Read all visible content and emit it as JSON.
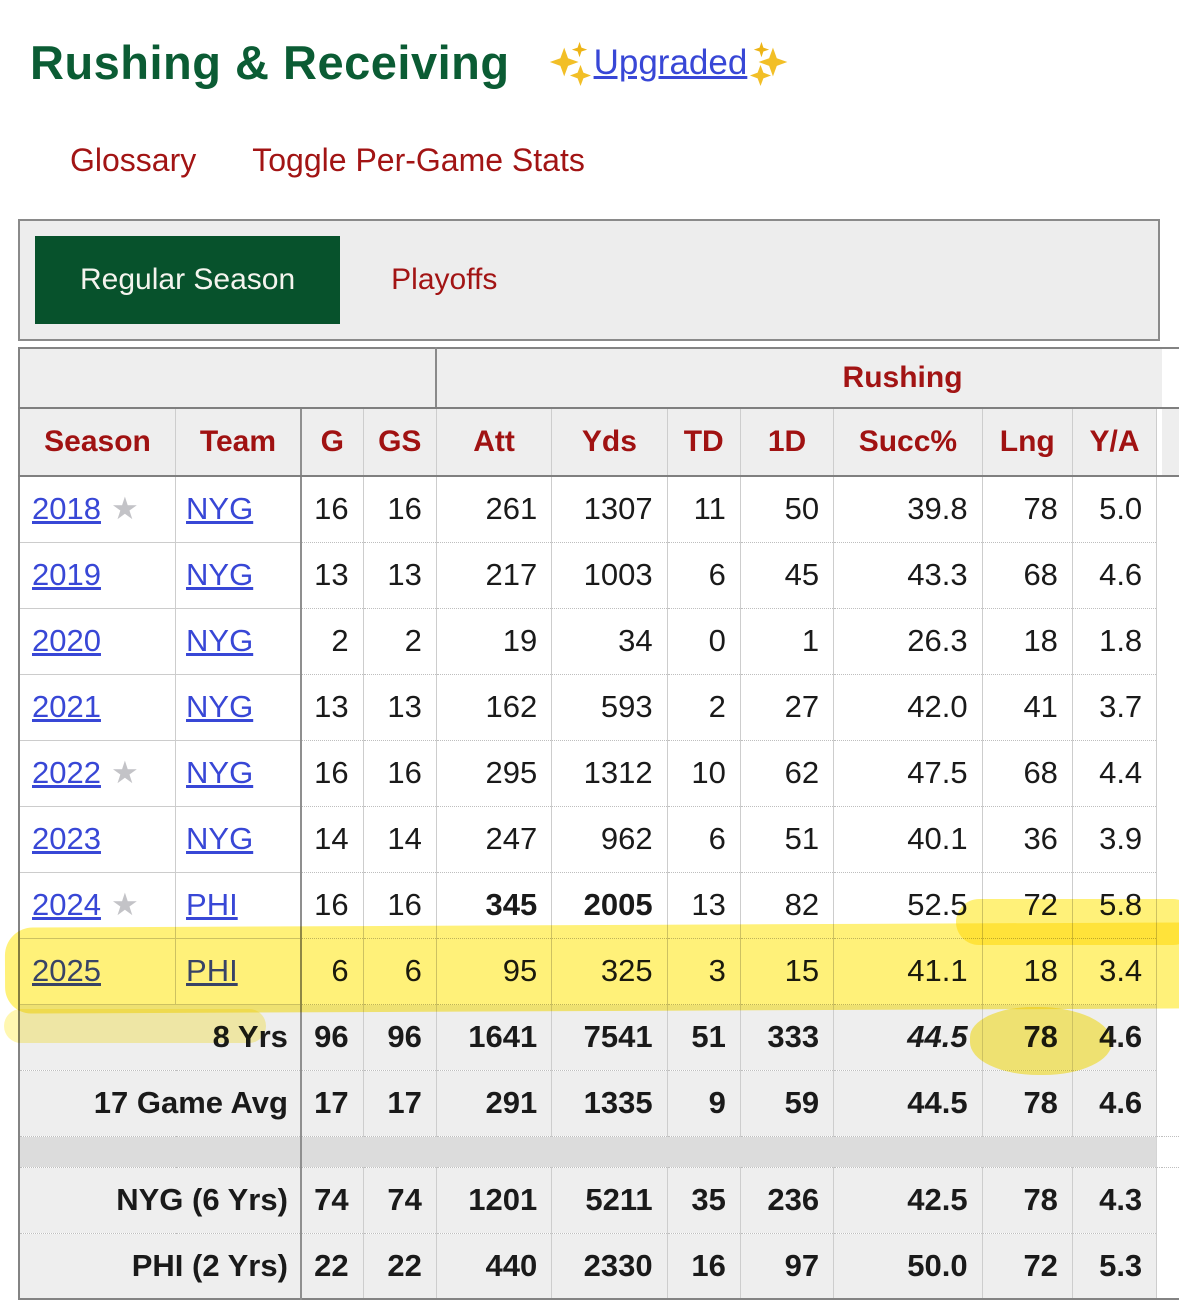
{
  "header": {
    "title": "Rushing & Receiving",
    "upgraded": "Upgraded",
    "glossary": "Glossary",
    "toggle": "Toggle Per-Game Stats"
  },
  "tabs": [
    {
      "label": "Regular Season",
      "active": true
    },
    {
      "label": "Playoffs",
      "active": false
    }
  ],
  "icons": {
    "star": "★",
    "sparkle": "gold-four-point-sparkle"
  },
  "colors": {
    "title_green": "#0b5c34",
    "tab_green": "#07522c",
    "accent_red": "#a21414",
    "link_blue": "#3847d6",
    "star_gray": "#c3c3c7",
    "highlight_yellow": "#ffe60a",
    "header_cell_bg": "#eeeeee",
    "spacer_row_gray": "#dcdcdc"
  },
  "table": {
    "group_header": "Rushing",
    "columns": [
      "Season",
      "Team",
      "G",
      "GS",
      "Att",
      "Yds",
      "TD",
      "1D",
      "Succ%",
      "Lng",
      "Y/A"
    ],
    "rows": [
      {
        "season": "2018",
        "star": true,
        "team": "NYG",
        "vals": [
          "16",
          "16",
          "261",
          "1307",
          "11",
          "50",
          "39.8",
          "78",
          "5.0"
        ]
      },
      {
        "season": "2019",
        "star": false,
        "team": "NYG",
        "vals": [
          "13",
          "13",
          "217",
          "1003",
          "6",
          "45",
          "43.3",
          "68",
          "4.6"
        ]
      },
      {
        "season": "2020",
        "star": false,
        "team": "NYG",
        "vals": [
          "2",
          "2",
          "19",
          "34",
          "0",
          "1",
          "26.3",
          "18",
          "1.8"
        ]
      },
      {
        "season": "2021",
        "star": false,
        "team": "NYG",
        "vals": [
          "13",
          "13",
          "162",
          "593",
          "2",
          "27",
          "42.0",
          "41",
          "3.7"
        ]
      },
      {
        "season": "2022",
        "star": true,
        "team": "NYG",
        "vals": [
          "16",
          "16",
          "295",
          "1312",
          "10",
          "62",
          "47.5",
          "68",
          "4.4"
        ]
      },
      {
        "season": "2023",
        "star": false,
        "team": "NYG",
        "vals": [
          "14",
          "14",
          "247",
          "962",
          "6",
          "51",
          "40.1",
          "36",
          "3.9"
        ]
      },
      {
        "season": "2024",
        "star": true,
        "team": "PHI",
        "vals": [
          "16",
          "16",
          "345",
          "2005",
          "13",
          "82",
          "52.5",
          "72",
          "5.8"
        ],
        "bold": [
          2,
          3
        ]
      },
      {
        "season": "2025",
        "star": false,
        "team": "PHI",
        "vals": [
          "6",
          "6",
          "95",
          "325",
          "3",
          "15",
          "41.1",
          "18",
          "3.4"
        ],
        "highlighted": true
      }
    ],
    "summary_rows": [
      {
        "label": "8 Yrs",
        "vals": [
          "96",
          "96",
          "1641",
          "7541",
          "51",
          "333",
          "44.5",
          "78",
          "4.6"
        ],
        "italic": [
          6
        ]
      },
      {
        "label": "17 Game Avg",
        "vals": [
          "17",
          "17",
          "291",
          "1335",
          "9",
          "59",
          "44.5",
          "78",
          "4.6"
        ]
      }
    ],
    "career_rows": [
      {
        "label": "NYG (6 Yrs)",
        "vals": [
          "74",
          "74",
          "1201",
          "5211",
          "35",
          "236",
          "42.5",
          "78",
          "4.3"
        ]
      },
      {
        "label": "PHI (2 Yrs)",
        "vals": [
          "22",
          "22",
          "440",
          "2330",
          "16",
          "97",
          "50.0",
          "72",
          "5.3"
        ]
      }
    ]
  }
}
